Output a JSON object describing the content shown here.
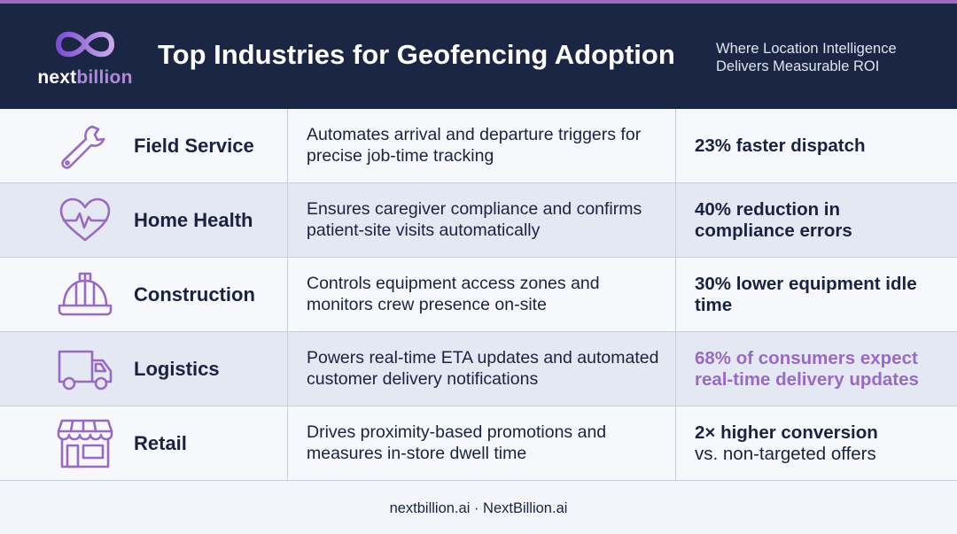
{
  "header": {
    "logo_text_part1": "next",
    "logo_text_part2": "billion",
    "title": "Top Industries for Geofencing Adoption",
    "subtitle": "Where Location Intelligence Delivers Measurable ROI"
  },
  "colors": {
    "accent_purple": "#9a6ac2",
    "header_navy": "#1a2644",
    "text_navy": "#1a2240"
  },
  "rows": [
    {
      "icon": "wrench-icon",
      "industry": "Field Service",
      "description": "Automates arrival and departure triggers for precise job-time tracking",
      "stat": "23% faster dispatch",
      "stat_extra": ""
    },
    {
      "icon": "heart-pulse-icon",
      "industry": "Home Health",
      "description": "Ensures caregiver compliance and confirms patient-site visits automatically",
      "stat": "40% reduction in compliance errors",
      "stat_extra": ""
    },
    {
      "icon": "hard-hat-icon",
      "industry": "Construction",
      "description": "Controls equipment access zones and monitors crew presence on-site",
      "stat": "30% lower equipment idle time",
      "stat_extra": ""
    },
    {
      "icon": "delivery-truck-icon",
      "industry": "Logistics",
      "description": "Powers real-time ETA updates and automated customer delivery notifications",
      "stat": "68% of consumers expect real-time delivery updates",
      "stat_extra": ""
    },
    {
      "icon": "storefront-icon",
      "industry": "Retail",
      "description": "Drives proximity-based promotions and measures in-store dwell time",
      "stat": "2× higher conversion",
      "stat_extra": "vs. non-targeted offers"
    }
  ],
  "footer": {
    "text": "nextbillion.ai · NextBillion.ai"
  }
}
